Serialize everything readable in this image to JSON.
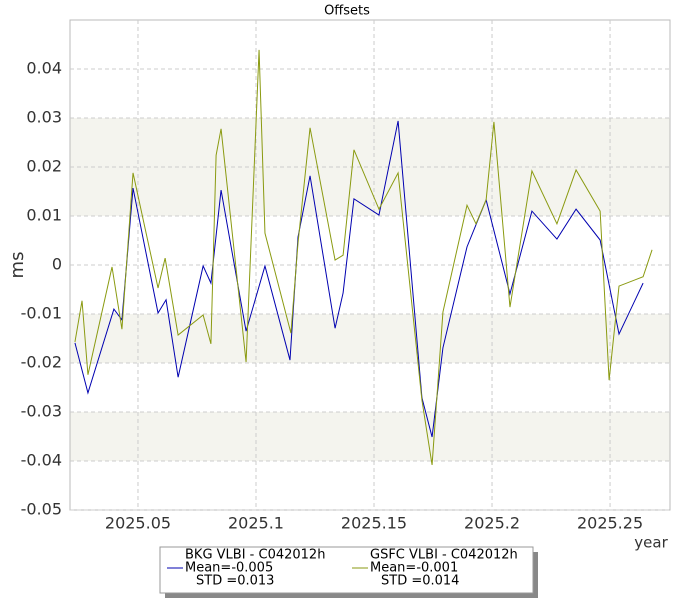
{
  "chart_data": {
    "type": "line",
    "title": "Offsets",
    "x_label": "year",
    "y_label": "ms",
    "xlim": [
      2025.0212,
      2025.2754
    ],
    "ylim": [
      -0.05,
      0.05
    ],
    "xticks": [
      2025.05,
      2025.1,
      2025.15,
      2025.2,
      2025.25
    ],
    "yticks": [
      -0.05,
      -0.04,
      -0.03,
      -0.02,
      -0.01,
      0,
      0.01,
      0.02,
      0.03,
      0.04
    ],
    "grid": true,
    "series": [
      {
        "name": "BKG VLBI - C042012h",
        "mean": "Mean=-0.005",
        "std": "STD =0.013",
        "color": "#0000b0",
        "x": [
          2025.0233,
          2025.0288,
          2025.0398,
          2025.0432,
          2025.0479,
          2025.0585,
          2025.0619,
          2025.067,
          2025.0776,
          2025.0809,
          2025.0852,
          2025.0958,
          2025.1038,
          2025.1144,
          2025.1178,
          2025.1229,
          2025.1335,
          2025.1369,
          2025.1415,
          2025.1521,
          2025.1602,
          2025.1703,
          2025.1746,
          2025.1792,
          2025.1894,
          2025.1975,
          2025.2076,
          2025.2169,
          2025.2275,
          2025.2356,
          2025.2458,
          2025.2538,
          2025.264
        ],
        "values": [
          -0.0159,
          -0.0261,
          -0.009,
          -0.0112,
          0.0157,
          -0.0098,
          -0.0071,
          -0.0229,
          -0.0002,
          -0.0037,
          0.0153,
          -0.0135,
          -0.0002,
          -0.0194,
          0.0057,
          0.0182,
          -0.0129,
          -0.0057,
          0.0135,
          0.0102,
          0.0294,
          -0.0271,
          -0.0351,
          -0.0169,
          0.0037,
          0.0133,
          -0.0059,
          0.011,
          0.0053,
          0.0114,
          0.0051,
          -0.0141,
          -0.0037
        ]
      },
      {
        "name": "GSFC VLBI - C042012h",
        "mean": "Mean=-0.001",
        "std": "STD =0.014",
        "color": "#8a9a10",
        "x": [
          2025.0233,
          2025.0263,
          2025.0288,
          2025.039,
          2025.0432,
          2025.0479,
          2025.0585,
          2025.0615,
          2025.067,
          2025.0776,
          2025.0809,
          2025.0831,
          2025.0852,
          2025.0958,
          2025.1013,
          2025.1038,
          2025.1148,
          2025.1178,
          2025.1229,
          2025.1335,
          2025.1369,
          2025.1415,
          2025.1521,
          2025.1602,
          2025.1703,
          2025.1746,
          2025.1792,
          2025.1894,
          2025.1932,
          2025.1975,
          2025.2008,
          2025.2076,
          2025.2169,
          2025.2275,
          2025.2356,
          2025.2458,
          2025.2496,
          2025.2538,
          2025.264,
          2025.2678
        ],
        "values": [
          -0.0157,
          -0.0073,
          -0.0224,
          -0.0004,
          -0.0131,
          0.0188,
          -0.0047,
          0.0014,
          -0.0143,
          -0.0102,
          -0.0161,
          0.0224,
          0.0278,
          -0.0198,
          0.0439,
          0.0065,
          -0.0139,
          0.0045,
          0.028,
          0.001,
          0.002,
          0.0235,
          0.0114,
          0.0188,
          -0.0276,
          -0.0408,
          -0.0096,
          0.0122,
          0.0084,
          0.0133,
          0.0292,
          -0.0086,
          0.0192,
          0.0084,
          0.0194,
          0.011,
          -0.0235,
          -0.0043,
          -0.0024,
          0.0031
        ]
      }
    ]
  }
}
